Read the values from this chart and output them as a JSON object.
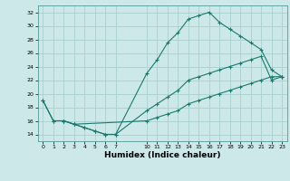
{
  "xlabel": "Humidex (Indice chaleur)",
  "bg_color": "#cce8e8",
  "line_color": "#1a7a6e",
  "grid_color": "#aad0d0",
  "xlim": [
    -0.5,
    23.5
  ],
  "ylim": [
    13.0,
    33.0
  ],
  "xticks": [
    0,
    1,
    2,
    3,
    4,
    5,
    6,
    7,
    10,
    11,
    12,
    13,
    14,
    15,
    16,
    17,
    18,
    19,
    20,
    21,
    22,
    23
  ],
  "yticks": [
    14,
    16,
    18,
    20,
    22,
    24,
    26,
    28,
    30,
    32
  ],
  "line1_x": [
    0,
    1,
    2,
    3,
    4,
    5,
    6,
    7,
    10,
    11,
    12,
    13,
    14,
    15,
    16,
    17,
    18,
    19,
    20,
    21,
    22,
    23
  ],
  "line1_y": [
    19,
    16,
    16,
    15.5,
    15,
    14.5,
    14,
    14,
    23,
    25,
    27.5,
    29,
    31,
    31.5,
    32,
    30.5,
    29.5,
    28.5,
    27.5,
    26.5,
    23.5,
    22.5
  ],
  "line2_x": [
    0,
    1,
    2,
    3,
    4,
    5,
    6,
    7,
    10,
    11,
    12,
    13,
    14,
    15,
    16,
    17,
    18,
    19,
    20,
    21,
    22,
    23
  ],
  "line2_y": [
    19,
    16,
    16,
    15.5,
    15,
    14.5,
    14,
    14,
    17.5,
    18.5,
    19.5,
    20.5,
    22,
    22.5,
    23,
    23.5,
    24,
    24.5,
    25,
    25.5,
    22,
    22.5
  ],
  "line3_x": [
    2,
    3,
    10,
    11,
    12,
    13,
    14,
    15,
    16,
    17,
    18,
    19,
    20,
    21,
    22,
    23
  ],
  "line3_y": [
    16,
    15.5,
    16,
    16.5,
    17,
    17.5,
    18.5,
    19,
    19.5,
    20,
    20.5,
    21,
    21.5,
    22,
    22.5,
    22.5
  ]
}
